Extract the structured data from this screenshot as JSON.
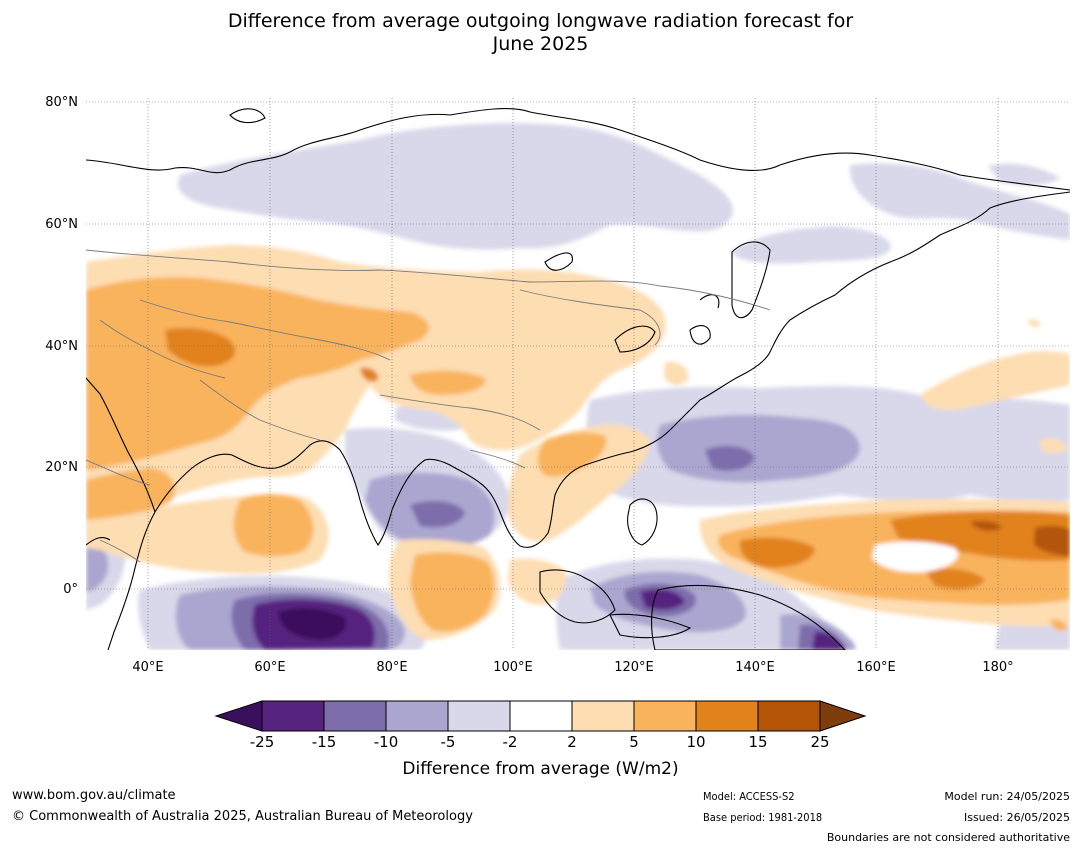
{
  "title": {
    "line1": "Difference from average outgoing longwave radiation forecast for",
    "line2": "June 2025"
  },
  "axes": {
    "lat_labels": [
      "80°N",
      "60°N",
      "40°N",
      "20°N",
      "0°"
    ],
    "lon_labels": [
      "40°E",
      "60°E",
      "80°E",
      "100°E",
      "120°E",
      "140°E",
      "160°E",
      "180°"
    ]
  },
  "map": {
    "region": "Asia / Indian Ocean / Western Pacific",
    "lat_range": [
      -10,
      80
    ],
    "lon_range": [
      30,
      190
    ]
  },
  "colorbar": {
    "title": "Difference from average (W/m2)",
    "ticks": [
      "-25",
      "-15",
      "-10",
      "-5",
      "-2",
      "2",
      "5",
      "10",
      "15",
      "25"
    ],
    "colors": [
      "#3a0f5c",
      "#56237f",
      "#7d6dab",
      "#aba6cf",
      "#d8d8ea",
      "#ffffff",
      "#fdddb2",
      "#f9b35d",
      "#e1821d",
      "#b35407",
      "#7d3d0c"
    ]
  },
  "footer": {
    "website": "www.bom.gov.au/climate",
    "copyright": "© Commonwealth of Australia 2025, Australian Bureau of Meteorology",
    "model": "Model: ACCESS-S2",
    "base_period": "Base period: 1981-2018",
    "model_run": "Model run: 24/05/2025",
    "issued": "Issued: 26/05/2025",
    "boundaries_note": "Boundaries are not considered authoritative"
  }
}
